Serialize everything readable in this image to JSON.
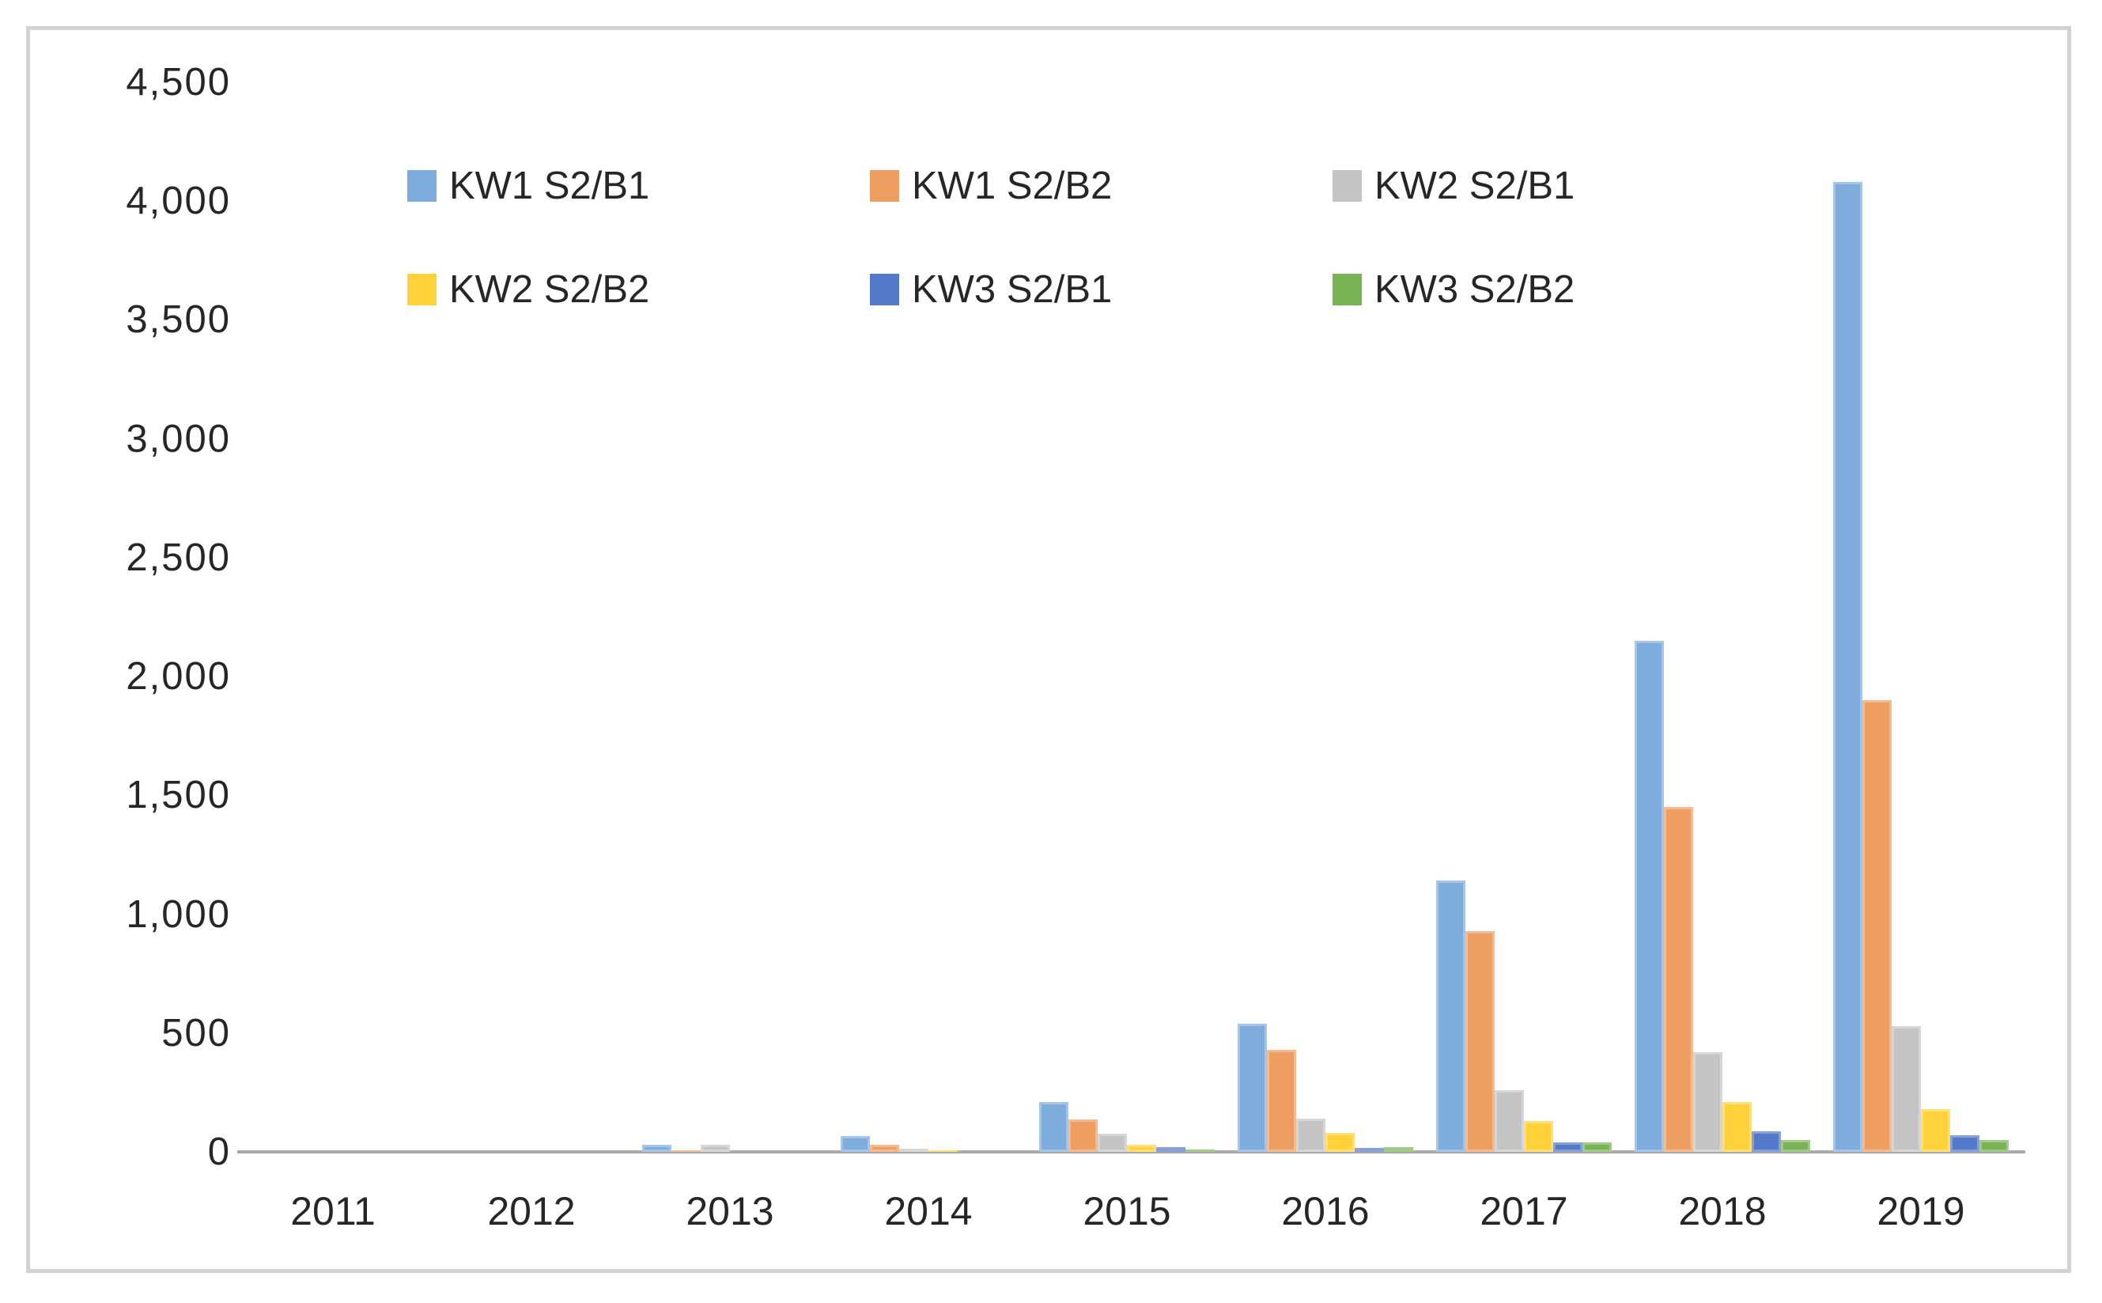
{
  "chart_data": {
    "type": "bar",
    "title": "",
    "xlabel": "",
    "ylabel": "",
    "categories": [
      "2011",
      "2012",
      "2013",
      "2014",
      "2015",
      "2016",
      "2017",
      "2018",
      "2019"
    ],
    "series": [
      {
        "name": "KW1 S2/B1",
        "color": "#7EACDD",
        "values": [
          0,
          0,
          30,
          65,
          210,
          540,
          1140,
          2150,
          4080
        ]
      },
      {
        "name": "KW1 S2/B2",
        "color": "#EF9E62",
        "values": [
          0,
          0,
          5,
          30,
          135,
          430,
          930,
          1450,
          1900
        ]
      },
      {
        "name": "KW2 S2/B1",
        "color": "#C4C4C4",
        "values": [
          0,
          0,
          30,
          12,
          75,
          140,
          260,
          420,
          530
        ]
      },
      {
        "name": "KW2 S2/B2",
        "color": "#FFD23C",
        "values": [
          0,
          0,
          0,
          5,
          30,
          80,
          130,
          210,
          180
        ]
      },
      {
        "name": "KW3 S2/B1",
        "color": "#5379C8",
        "values": [
          0,
          0,
          0,
          0,
          20,
          15,
          40,
          85,
          70
        ]
      },
      {
        "name": "KW3 S2/B2",
        "color": "#79B356",
        "values": [
          0,
          0,
          0,
          0,
          10,
          20,
          40,
          50,
          50
        ]
      }
    ],
    "ylim": [
      0,
      4500
    ],
    "y_ticks": [
      {
        "label": "0",
        "value": 0
      },
      {
        "label": "500",
        "value": 500
      },
      {
        "label": "1,000",
        "value": 1000
      },
      {
        "label": "1,500",
        "value": 1500
      },
      {
        "label": "2,000",
        "value": 2000
      },
      {
        "label": "2,500",
        "value": 2500
      },
      {
        "label": "3,000",
        "value": 3000
      },
      {
        "label": "3,500",
        "value": 3500
      },
      {
        "label": "4,000",
        "value": 4000
      },
      {
        "label": "4,500",
        "value": 4500
      }
    ],
    "grid": false,
    "legend_position": "inside-top-left",
    "legend_rows": 2,
    "legend_columns": 3
  },
  "style": {
    "axis_line_color": "#ababab",
    "frame_border_color": "#d2d2d2",
    "text_color": "#262626",
    "background_color": "#ffffff"
  }
}
